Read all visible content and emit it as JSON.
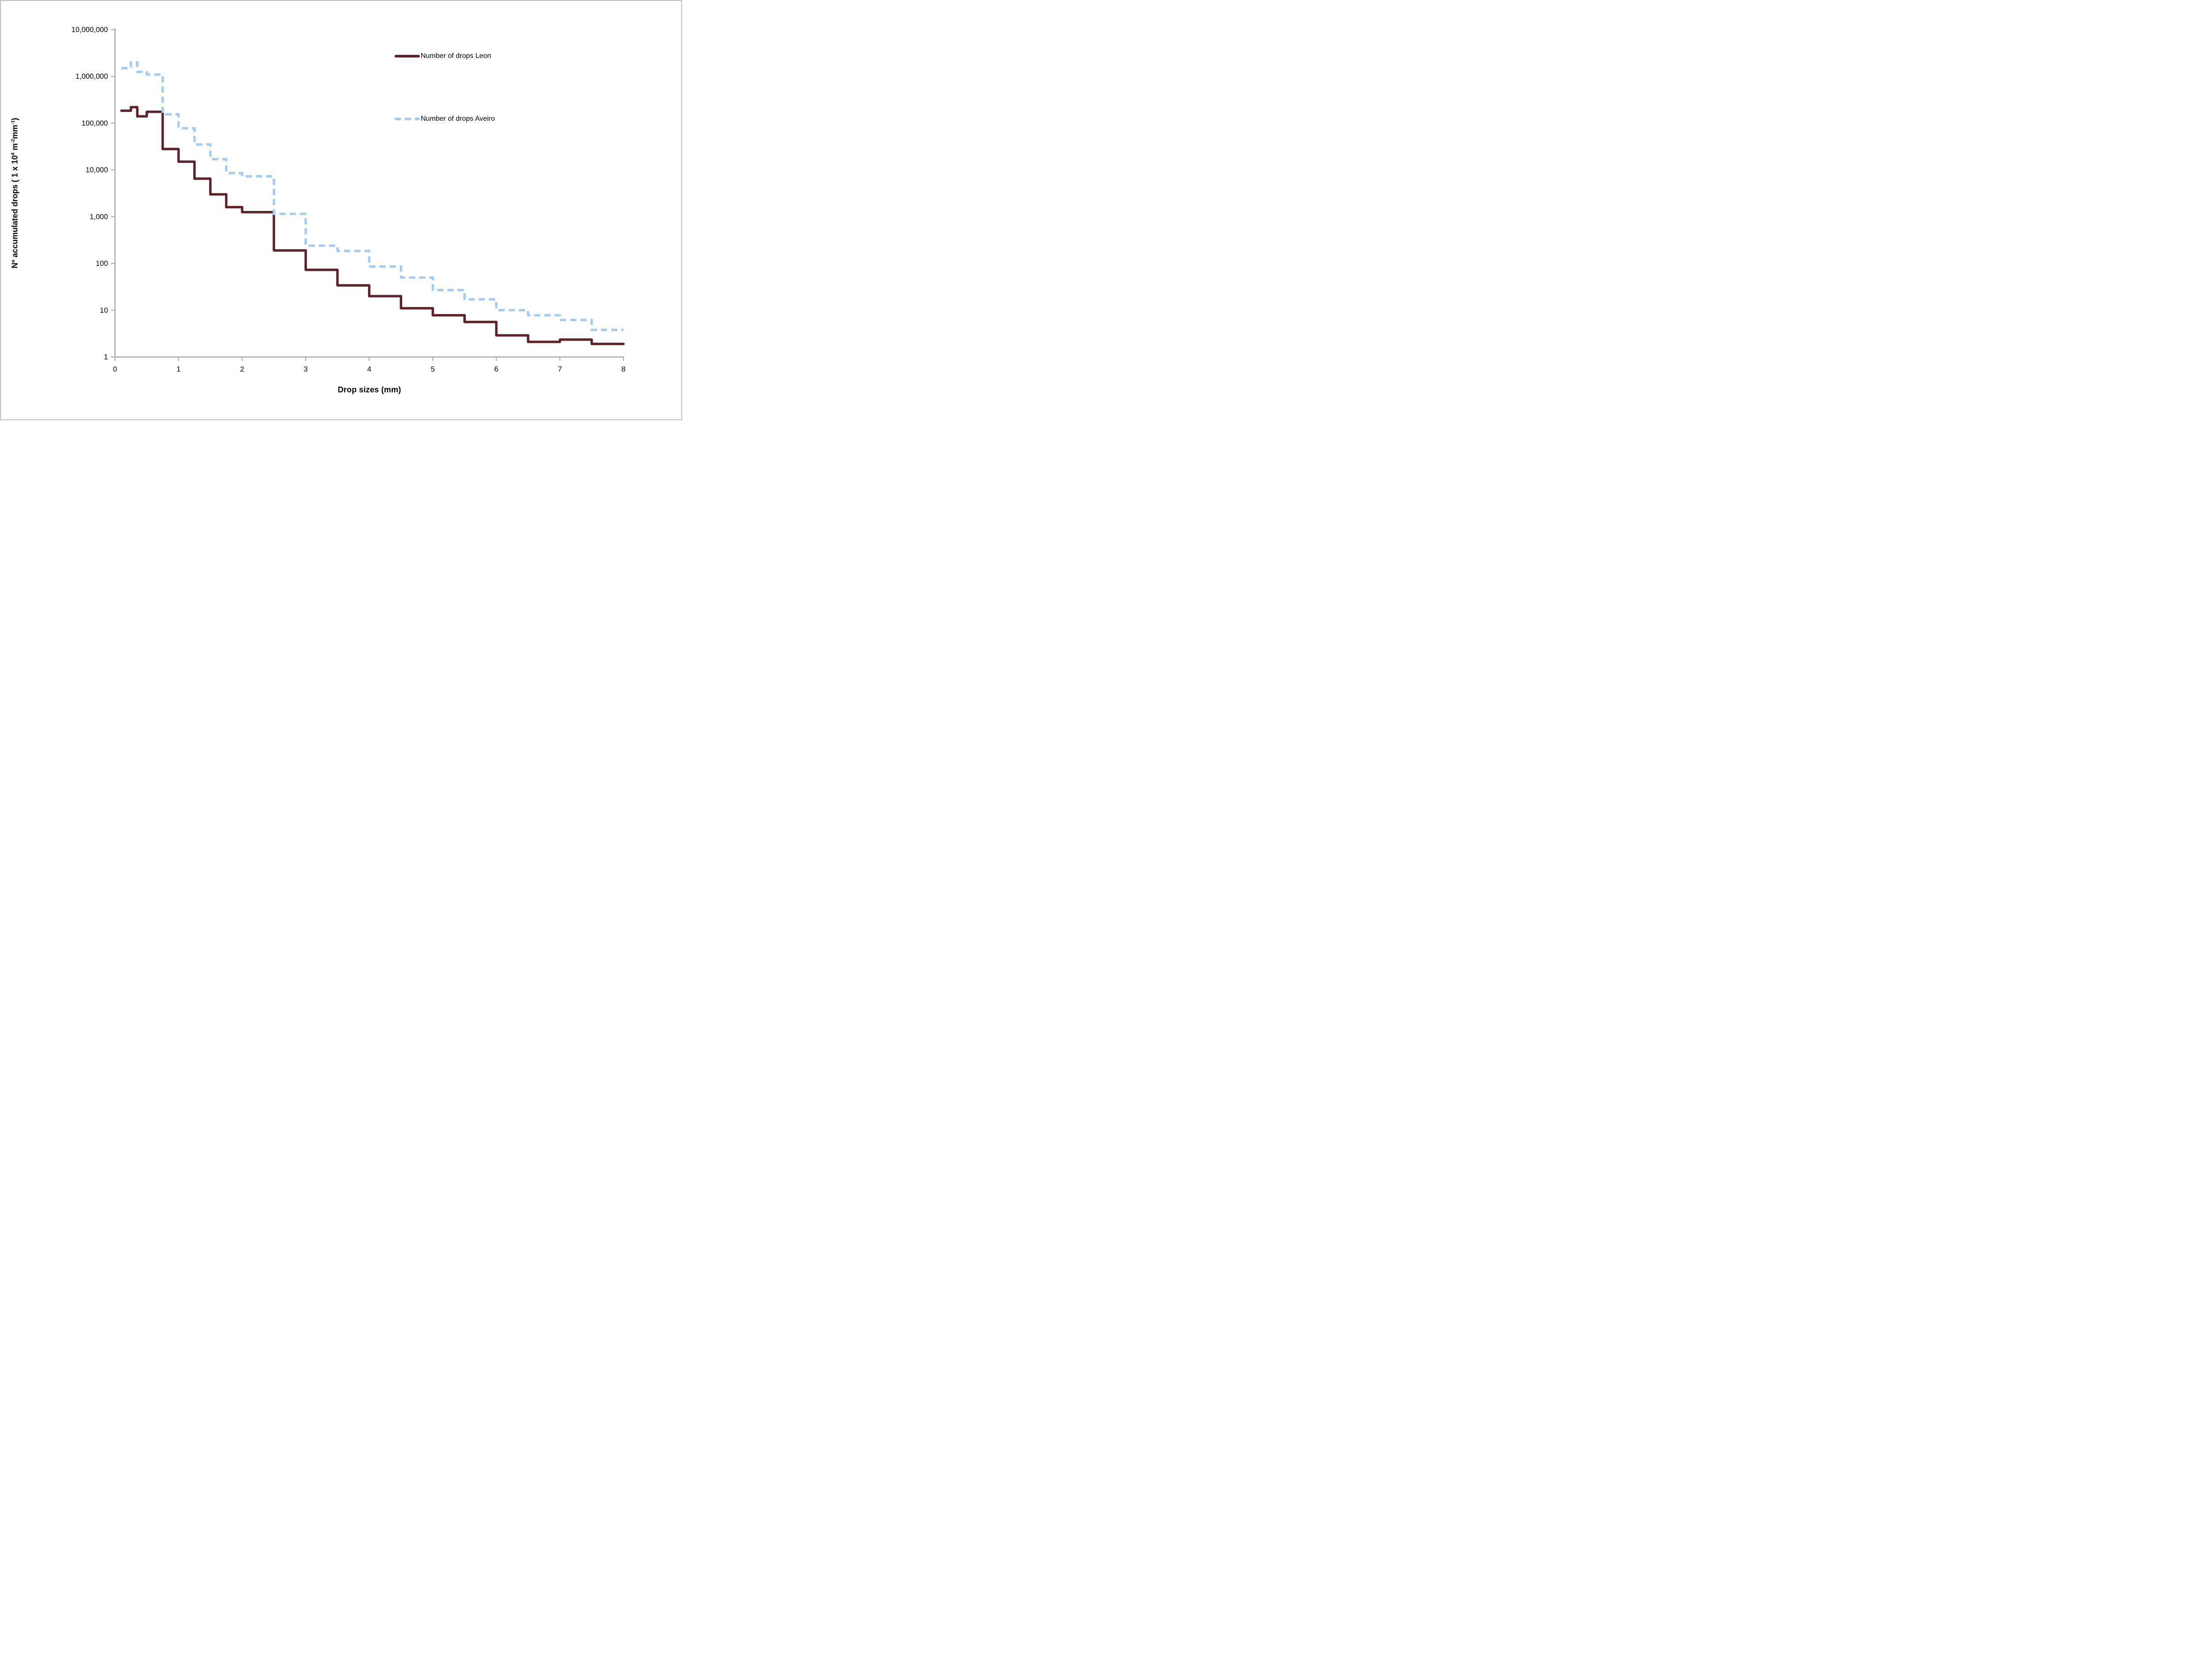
{
  "chart_data": {
    "type": "line",
    "subtype": "step-histogram-log-y",
    "title": "",
    "xlabel": "Drop sizes (mm)",
    "ylabel": "Nº accumulated drops ( 1 x 10⁴ m⁻²mm⁻¹)",
    "ylabel_parts": [
      [
        "t",
        "Nº accumulated drops ( 1 x 10"
      ],
      [
        "s",
        "4"
      ],
      [
        "t",
        " m"
      ],
      [
        "s",
        "-2"
      ],
      [
        "t",
        "mm"
      ],
      [
        "s",
        "-1"
      ],
      [
        "t",
        ")"
      ]
    ],
    "xlim": [
      0,
      8
    ],
    "ylim": [
      1,
      10000000
    ],
    "y_log": true,
    "grid": false,
    "legend_position": "inside-top-right",
    "x_tick_labels": [
      "0",
      "1",
      "2",
      "3",
      "4",
      "5",
      "6",
      "7",
      "8"
    ],
    "x_tick_values": [
      0,
      1,
      2,
      3,
      4,
      5,
      6,
      7,
      8
    ],
    "y_tick_labels": [
      "10,000,000",
      "1,000,000",
      "100,000",
      "10,000",
      "1,000",
      "100",
      "10",
      "1"
    ],
    "y_tick_exponents": [
      7,
      6,
      5,
      4,
      3,
      2,
      1,
      0
    ],
    "bin_edges": [
      0.1,
      0.25,
      0.35,
      0.5,
      0.75,
      1.0,
      1.25,
      1.5,
      1.75,
      2.0,
      2.5,
      3.0,
      3.5,
      4.0,
      4.5,
      5.0,
      5.5,
      6.0,
      6.5,
      7.0,
      7.5,
      8.0
    ],
    "series": [
      {
        "name": "Number of drops Leon",
        "color": "#5E2329",
        "style": "solid",
        "values": [
          185000,
          220000,
          140000,
          175000,
          28000,
          15000,
          6500,
          3000,
          1600,
          1250,
          190,
          73,
          34,
          20,
          11,
          7.8,
          5.6,
          2.9,
          2.1,
          2.35,
          1.9
        ]
      },
      {
        "name": "Number of drops Aveiro",
        "color": "#A3CCF0",
        "style": "dashed",
        "values": [
          1500000,
          2000000,
          1250000,
          1100000,
          155000,
          78000,
          35000,
          17000,
          8600,
          7300,
          1150,
          240,
          185,
          86,
          50,
          27,
          17,
          10,
          7.8,
          6.2,
          3.8
        ]
      }
    ]
  },
  "legend": {
    "items": [
      {
        "label": "Number of drops Leon",
        "color": "#5E2329",
        "dash": false
      },
      {
        "label": "Number of drops Aveiro",
        "color": "#A3CCF0",
        "dash": true
      }
    ]
  },
  "colors": {
    "axis": "#A6A6A6",
    "text": "#000000",
    "frame": "#BFBFBF",
    "background": "#FFFFFF"
  }
}
